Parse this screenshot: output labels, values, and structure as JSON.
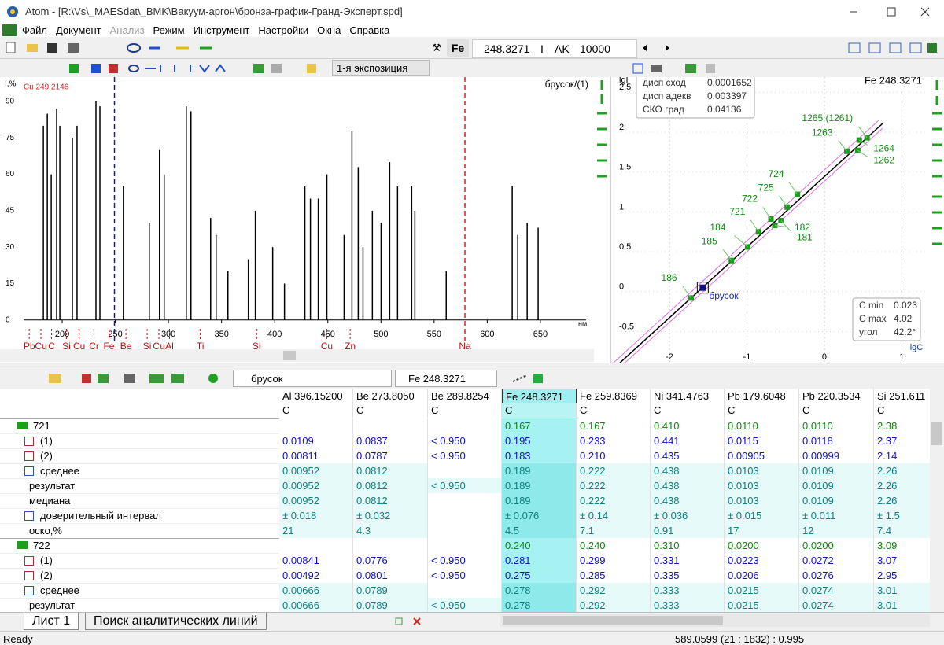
{
  "window": {
    "title": "Atom - [R:\\Vs\\_MAESdat\\_BMK\\Вакуум-аргон\\бронза-график-Гранд-Эксперт.spd]",
    "menu": [
      "Файл",
      "Документ",
      "Анализ",
      "Режим",
      "Инструмент",
      "Настройки",
      "Окна",
      "Справка"
    ]
  },
  "toolbar": {
    "element": "Fe",
    "wavelength": "248.3271",
    "mode": "I",
    "source": "AK",
    "value": "10000"
  },
  "spectrum_toolbar": {
    "exposure": "1-я экспозиция"
  },
  "chart_data": [
    {
      "type": "stem",
      "y_label": "I,%",
      "x_unit": "нм",
      "sample_label": "брусок/(1)",
      "color": "#000000",
      "cursor": {
        "label": "Cu 249.2146",
        "x": 249.2146,
        "color": "#1a1aa0"
      },
      "reference_line": {
        "label": "Na",
        "x": 579,
        "color": "#e02020"
      },
      "elements": {
        "names": [
          "Pb",
          "Cu",
          "C",
          "Si",
          "Cu",
          "Cr",
          "Fe",
          "Be",
          "Si",
          "Cu",
          "Al",
          "Ti",
          "Si",
          "Cu",
          "Zn"
        ],
        "x": [
          169,
          180,
          190,
          204,
          216,
          230,
          244,
          260,
          280,
          291,
          301,
          330,
          383,
          449,
          471
        ],
        "color": "#c01010"
      },
      "x": [
        182.3,
        186,
        189.7,
        194.8,
        197.8,
        209.6,
        214,
        231.8,
        235.5,
        257.6,
        282,
        291.6,
        296,
        316.8,
        321.2,
        339.7,
        344.9,
        356,
        375.2,
        381.8,
        398.1,
        409.2,
        428.4,
        433.6,
        441,
        449.1,
        465.3,
        472.7,
        478.6,
        483.1,
        491.9,
        500.1,
        508.2,
        515.6,
        528.9,
        531.9,
        561.4,
        623.5,
        628.7,
        637.6,
        647.9
      ],
      "values": [
        80,
        85,
        60,
        87,
        80,
        75,
        80,
        90,
        88,
        55,
        40,
        70,
        60,
        88,
        86,
        42,
        35,
        20,
        25,
        45,
        30,
        15,
        55,
        50,
        50,
        60,
        35,
        78,
        63,
        30,
        45,
        40,
        65,
        55,
        55,
        45,
        20,
        55,
        35,
        40,
        38
      ],
      "xlim": [
        163.7,
        693
      ],
      "ylim": [
        -3,
        99.4
      ],
      "xticks": [
        200,
        250,
        300,
        350,
        400,
        450,
        500,
        550,
        600,
        650
      ],
      "yticks": [
        0,
        15,
        30,
        45,
        60,
        75,
        90
      ]
    },
    {
      "type": "scatter",
      "title": "Fe 248.3271",
      "x_label": "lgC",
      "y_label": "lgI",
      "color": "#1f9a1f",
      "grid": true,
      "names": [
        "186",
        "185",
        "184",
        "721",
        "722",
        "725",
        "724",
        "182",
        "181",
        "1263",
        "1265 (1261)",
        "1264",
        "1262"
      ],
      "x": [
        -1.72,
        -1.2,
        -0.99,
        -0.85,
        -0.69,
        -0.48,
        -0.35,
        -0.64,
        -0.56,
        0.29,
        0.55,
        0.45,
        0.43
      ],
      "y": [
        -0.08,
        0.39,
        0.56,
        0.75,
        0.91,
        1.06,
        1.22,
        0.83,
        0.89,
        1.76,
        1.93,
        1.9,
        1.77
      ],
      "sample": {
        "name": "брусок",
        "x": -1.57,
        "y": 0.05,
        "color": "#101080"
      },
      "stats_top": {
        "labels": [
          "дисп сход",
          "дисп адекв",
          "СКО град"
        ],
        "values": [
          "0.0001652",
          "0.003397",
          "0.04136"
        ]
      },
      "stats_bottom": {
        "labels": [
          "C min",
          "C max",
          "угол"
        ],
        "values": [
          "0.023",
          "4.02",
          "42.2°"
        ]
      },
      "xlim": [
        -2.67,
        1.31
      ],
      "ylim": [
        -0.9,
        2.69
      ],
      "xticks": [
        -2,
        -1,
        0,
        1
      ],
      "yticks": [
        -0.5,
        0,
        0.5,
        1,
        1.5,
        2,
        2.5
      ]
    }
  ],
  "table": {
    "toolbar": {
      "sample": "брусок",
      "line": "Fe 248.3271"
    },
    "columns": [
      "Al 396.15200",
      "Be 273.8050",
      "Be 289.8254",
      "Fe 248.3271",
      "Fe 259.8369",
      "Ni 341.4763",
      "Pb 179.6048",
      "Pb 220.3534",
      "Si 251.611"
    ],
    "units": [
      "C",
      "C",
      "C",
      "C",
      "C",
      "C",
      "C",
      "C",
      "C"
    ],
    "rows": [
      {
        "label": "721",
        "cells": [
          null,
          null,
          null,
          "0.167",
          "0.167",
          "0.410",
          "0.0110",
          "0.0110",
          "2.38"
        ]
      },
      {
        "label": "(1)",
        "cells": [
          "0.0109",
          "0.0837",
          "< 0.950",
          "0.195",
          "0.233",
          "0.441",
          "0.0115",
          "0.0118",
          "2.37"
        ]
      },
      {
        "label": "(2)",
        "cells": [
          "0.00811",
          "0.0787",
          "< 0.950",
          "0.183",
          "0.210",
          "0.435",
          "0.00905",
          "0.00999",
          "2.14"
        ]
      },
      {
        "label": "среднее",
        "cells": [
          "0.00952",
          "0.0812",
          null,
          "0.189",
          "0.222",
          "0.438",
          "0.0103",
          "0.0109",
          "2.26"
        ]
      },
      {
        "label": "результат",
        "cells": [
          "0.00952",
          "0.0812",
          "< 0.950",
          "0.189",
          "0.222",
          "0.438",
          "0.0103",
          "0.0109",
          "2.26"
        ]
      },
      {
        "label": "медиана",
        "cells": [
          "0.00952",
          "0.0812",
          null,
          "0.189",
          "0.222",
          "0.438",
          "0.0103",
          "0.0109",
          "2.26"
        ]
      },
      {
        "label": "доверительный интервал",
        "cells": [
          "± 0.018",
          "± 0.032",
          null,
          "± 0.076",
          "± 0.14",
          "± 0.036",
          "± 0.015",
          "± 0.011",
          "± 1.5"
        ]
      },
      {
        "label": "оско,%",
        "cells": [
          "21",
          "4.3",
          null,
          "4.5",
          "7.1",
          "0.91",
          "17",
          "12",
          "7.4"
        ]
      },
      {
        "label": "722",
        "cells": [
          null,
          null,
          null,
          "0.240",
          "0.240",
          "0.310",
          "0.0200",
          "0.0200",
          "3.09"
        ]
      },
      {
        "label": "(1)",
        "cells": [
          "0.00841",
          "0.0776",
          "< 0.950",
          "0.281",
          "0.299",
          "0.331",
          "0.0223",
          "0.0272",
          "3.07"
        ]
      },
      {
        "label": "(2)",
        "cells": [
          "0.00492",
          "0.0801",
          "< 0.950",
          "0.275",
          "0.285",
          "0.335",
          "0.0206",
          "0.0276",
          "2.95"
        ]
      },
      {
        "label": "среднее",
        "cells": [
          "0.00666",
          "0.0789",
          null,
          "0.278",
          "0.292",
          "0.333",
          "0.0215",
          "0.0274",
          "3.01"
        ]
      },
      {
        "label": "результат",
        "cells": [
          "0.00666",
          "0.0789",
          "< 0.950",
          "0.278",
          "0.292",
          "0.333",
          "0.0215",
          "0.0274",
          "3.01"
        ]
      }
    ]
  },
  "tabs": [
    "Лист 1",
    "Поиск аналитических линий"
  ],
  "status": {
    "left": "Ready",
    "right": "589.0599 (21 : 1832) : 0.995"
  }
}
